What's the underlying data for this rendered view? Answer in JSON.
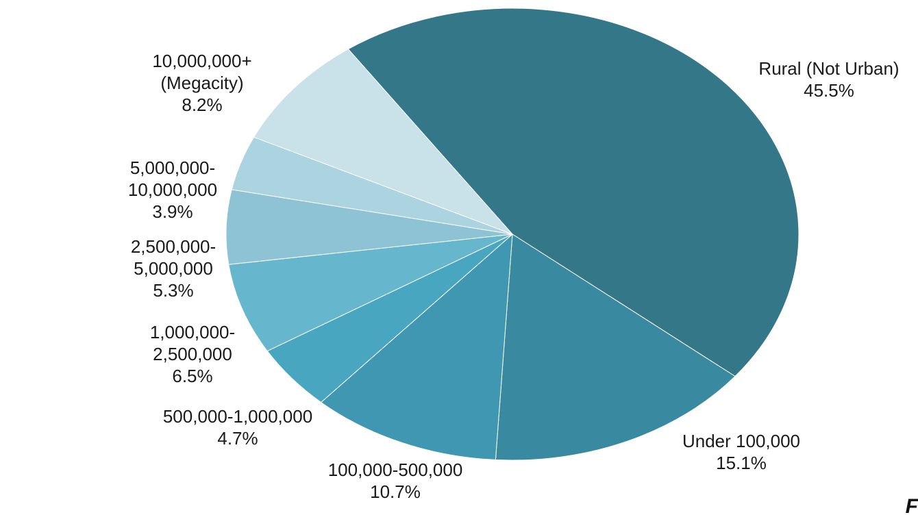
{
  "chart_data": {
    "type": "pie",
    "start_angle_deg": -125,
    "direction": "clockwise",
    "slices": [
      {
        "label_lines": [
          "Rural (Not Urban)"
        ],
        "pct": "45.5%",
        "value": 45.5,
        "color": "#347789"
      },
      {
        "label_lines": [
          "Under 100,000"
        ],
        "pct": "15.1%",
        "value": 15.1,
        "color": "#398aa0"
      },
      {
        "label_lines": [
          "100,000-500,000"
        ],
        "pct": "10.7%",
        "value": 10.7,
        "color": "#4097b1"
      },
      {
        "label_lines": [
          "500,000-1,000,000"
        ],
        "pct": "4.7%",
        "value": 4.7,
        "color": "#49a6c1"
      },
      {
        "label_lines": [
          "1,000,000-",
          "2,500,000"
        ],
        "pct": "6.5%",
        "value": 6.5,
        "color": "#66b6cd"
      },
      {
        "label_lines": [
          "2,500,000-",
          "5,000,000"
        ],
        "pct": "5.3%",
        "value": 5.3,
        "color": "#8ec3d5"
      },
      {
        "label_lines": [
          "5,000,000-",
          "10,000,000"
        ],
        "pct": "3.9%",
        "value": 3.9,
        "color": "#abd3e0"
      },
      {
        "label_lines": [
          "10,000,000+",
          "(Megacity)"
        ],
        "pct": "8.2%",
        "value": 8.2,
        "color": "#c9e1e9"
      }
    ]
  },
  "corner_text": "F"
}
